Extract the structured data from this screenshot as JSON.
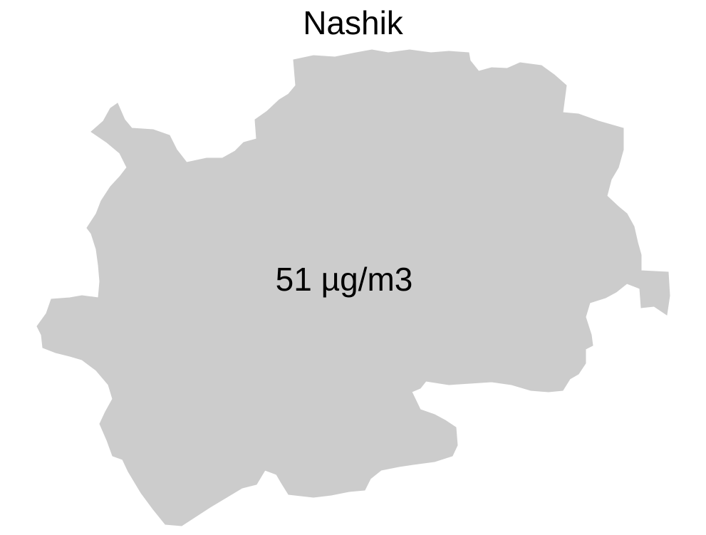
{
  "map": {
    "title": "Nashik",
    "region_value_label": "51 µg/m3",
    "fill_color": "#cccccc",
    "text_color": "#000000",
    "background_color": "#ffffff"
  }
}
